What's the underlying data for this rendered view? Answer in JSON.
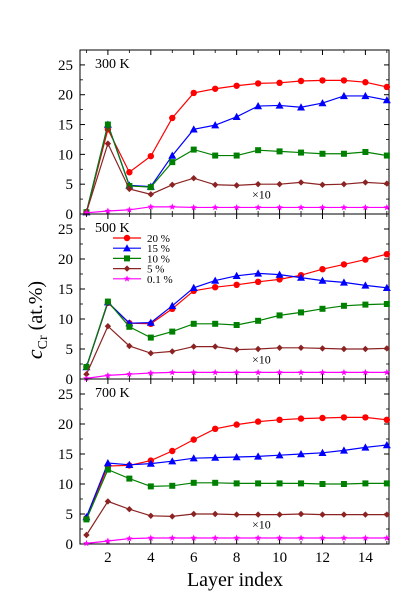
{
  "chart_data": {
    "type": "line",
    "xlabel": "Layer index",
    "ylabel": {
      "symbol": "c",
      "subscript": "Cr",
      "unit": " (at.%)"
    },
    "xlim": [
      0.7,
      15.1
    ],
    "ylim": [
      0,
      27.5
    ],
    "x_ticks": [
      2,
      4,
      6,
      8,
      10,
      12,
      14
    ],
    "x_minor_ticks": [
      1,
      3,
      5,
      7,
      9,
      11,
      13,
      15
    ],
    "y_ticks": [
      0,
      5,
      10,
      15,
      20,
      25
    ],
    "legend": {
      "placement": "upper-left of middle panel",
      "entries": [
        "20 %",
        "15 %",
        "10 %",
        "5 %",
        "0.1 %"
      ]
    },
    "series_styles": [
      {
        "name": "20 %",
        "color": "#ff0000",
        "marker": "circle"
      },
      {
        "name": "15 %",
        "color": "#0000ff",
        "marker": "triangle"
      },
      {
        "name": "10 %",
        "color": "#008000",
        "marker": "square"
      },
      {
        "name": "5 %",
        "color": "#8b2323",
        "marker": "diamond"
      },
      {
        "name": "0.1 %",
        "color": "#ff00ff",
        "marker": "star"
      }
    ],
    "scaled_note": "×10",
    "panels": [
      {
        "label": "300 K",
        "x": [
          1,
          2,
          3,
          4,
          5,
          6,
          7,
          8,
          9,
          10,
          11,
          12,
          13,
          14,
          15
        ],
        "series": [
          {
            "name": "20 %",
            "values": [
              0.3,
              14.2,
              7.0,
              9.7,
              16.1,
              20.3,
              21.0,
              21.5,
              21.9,
              22.0,
              22.3,
              22.4,
              22.4,
              22.1,
              21.3
            ]
          },
          {
            "name": "15 %",
            "values": [
              0.3,
              15.0,
              4.8,
              4.6,
              9.8,
              14.2,
              14.9,
              16.3,
              18.1,
              18.2,
              17.9,
              18.6,
              19.8,
              19.8,
              19.1
            ]
          },
          {
            "name": "10 %",
            "values": [
              0.3,
              15.0,
              4.7,
              4.5,
              8.7,
              10.8,
              9.8,
              9.8,
              10.7,
              10.5,
              10.3,
              10.1,
              10.1,
              10.4,
              9.8
            ]
          },
          {
            "name": "5 %",
            "values": [
              0.3,
              11.8,
              4.2,
              3.3,
              4.9,
              6.0,
              4.9,
              4.8,
              5.0,
              5.0,
              5.3,
              4.9,
              5.0,
              5.3,
              5.1
            ]
          },
          {
            "name": "0.1 %",
            "values": [
              0.2,
              0.5,
              0.7,
              1.2,
              1.2,
              1.1,
              1.1,
              1.1,
              1.1,
              1.1,
              1.1,
              1.1,
              1.1,
              1.1,
              1.1
            ]
          }
        ]
      },
      {
        "label": "500 K",
        "x": [
          1,
          2,
          3,
          4,
          5,
          6,
          7,
          8,
          9,
          10,
          11,
          12,
          13,
          14,
          15
        ],
        "series": [
          {
            "name": "20 %",
            "values": [
              2.0,
              12.7,
              9.3,
              9.2,
              11.7,
              14.7,
              15.3,
              15.7,
              16.2,
              16.6,
              17.3,
              18.3,
              19.1,
              19.9,
              20.8
            ]
          },
          {
            "name": "15 %",
            "values": [
              2.0,
              12.8,
              9.3,
              9.4,
              12.2,
              15.2,
              16.4,
              17.2,
              17.6,
              17.4,
              16.9,
              16.4,
              16.1,
              15.6,
              15.2
            ]
          },
          {
            "name": "10 %",
            "values": [
              2.0,
              12.9,
              8.7,
              6.9,
              7.9,
              9.2,
              9.2,
              9.0,
              9.7,
              10.6,
              11.1,
              11.7,
              12.2,
              12.4,
              12.5
            ]
          },
          {
            "name": "5 %",
            "values": [
              0.8,
              8.8,
              5.5,
              4.3,
              4.6,
              5.4,
              5.4,
              4.9,
              5.0,
              5.2,
              5.2,
              5.1,
              5.0,
              5.0,
              5.1
            ]
          },
          {
            "name": "0.1 %",
            "values": [
              0.1,
              0.6,
              0.8,
              1.0,
              1.1,
              1.1,
              1.1,
              1.1,
              1.1,
              1.1,
              1.1,
              1.1,
              1.1,
              1.1,
              1.1
            ]
          }
        ]
      },
      {
        "label": "700 K",
        "x": [
          1,
          2,
          3,
          4,
          5,
          6,
          7,
          8,
          9,
          10,
          11,
          12,
          13,
          14,
          15
        ],
        "series": [
          {
            "name": "20 %",
            "values": [
              4.3,
              13.0,
              13.1,
              13.9,
              15.5,
              17.4,
              19.2,
              19.9,
              20.4,
              20.7,
              20.9,
              21.0,
              21.1,
              21.1,
              20.7
            ]
          },
          {
            "name": "15 %",
            "values": [
              4.5,
              13.5,
              13.2,
              13.4,
              13.8,
              14.3,
              14.4,
              14.5,
              14.6,
              14.8,
              15.0,
              15.2,
              15.6,
              16.1,
              16.5
            ]
          },
          {
            "name": "10 %",
            "values": [
              4.1,
              12.4,
              10.9,
              9.6,
              9.7,
              10.2,
              10.2,
              10.1,
              10.1,
              10.1,
              10.1,
              10.0,
              10.0,
              10.1,
              10.1
            ]
          },
          {
            "name": "5 %",
            "values": [
              1.5,
              7.1,
              5.8,
              4.7,
              4.6,
              5.0,
              5.0,
              4.9,
              4.9,
              4.9,
              5.0,
              4.9,
              4.9,
              4.9,
              4.9
            ]
          },
          {
            "name": "0.1 %",
            "values": [
              0.1,
              0.5,
              0.9,
              1.0,
              1.0,
              1.0,
              1.0,
              1.0,
              1.0,
              1.0,
              1.0,
              1.0,
              1.0,
              1.0,
              1.0
            ]
          }
        ]
      }
    ]
  }
}
